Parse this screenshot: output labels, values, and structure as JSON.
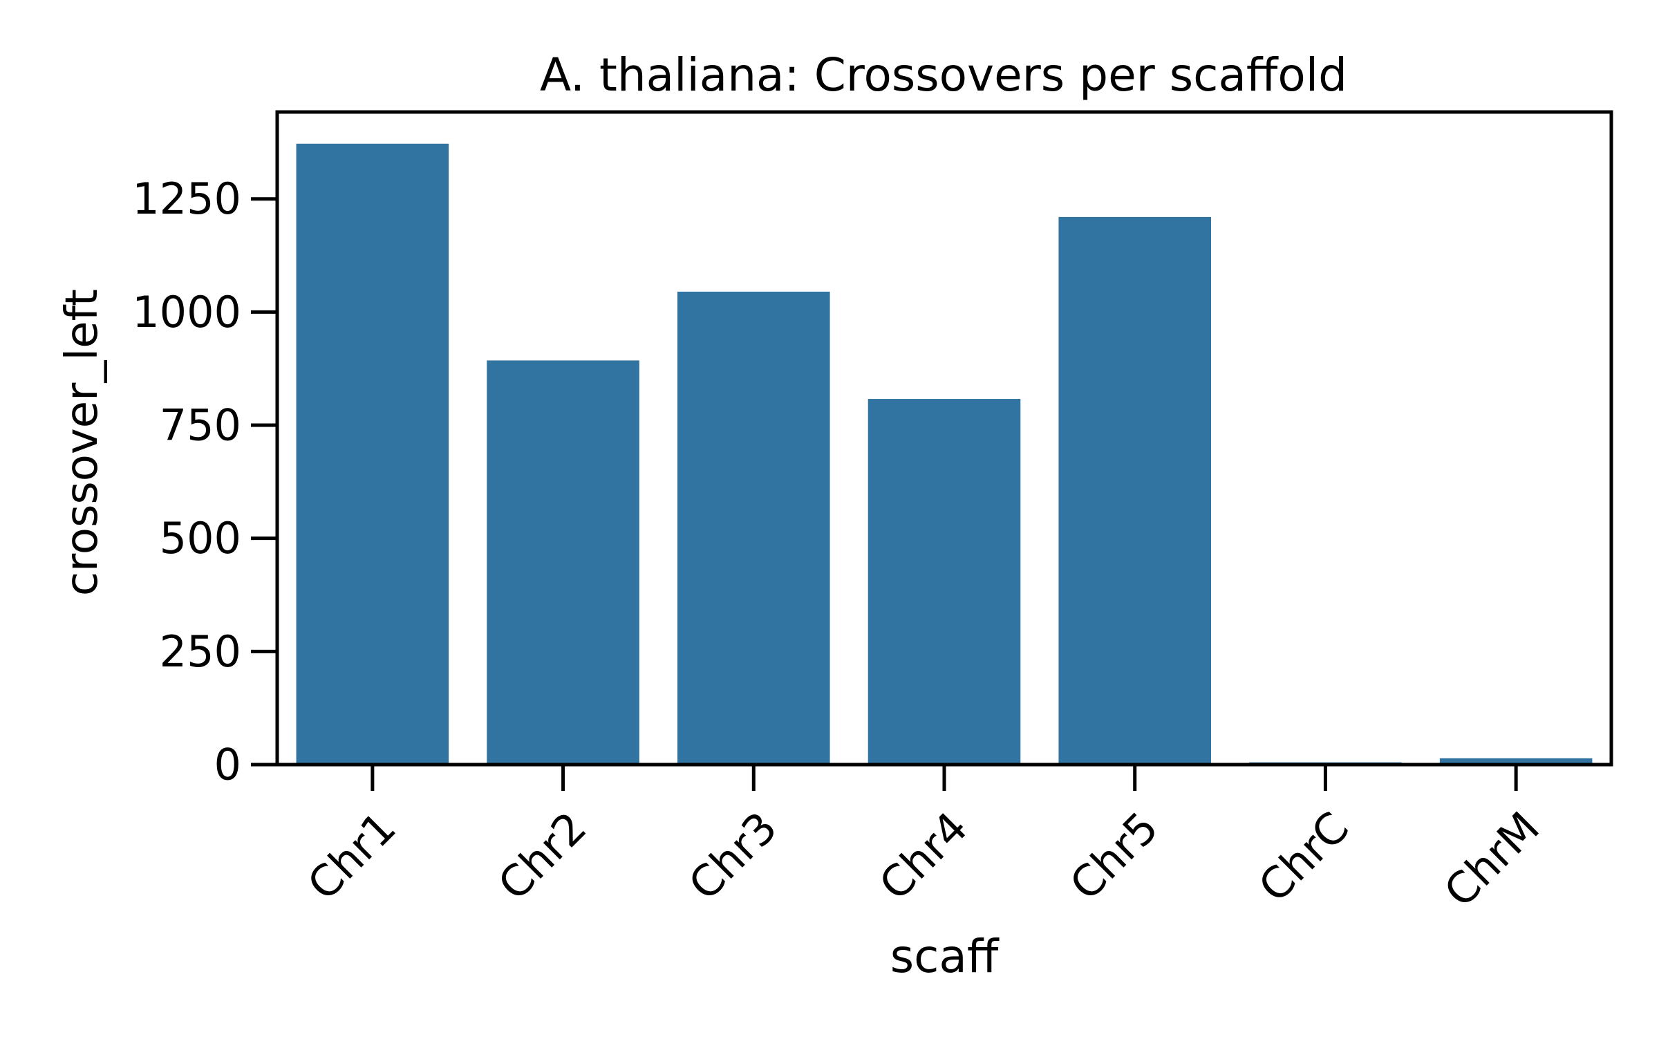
{
  "chart_data": {
    "type": "bar",
    "title": "A. thaliana: Crossovers per scaffold",
    "xlabel": "scaff",
    "ylabel": "crossover_left",
    "categories": [
      "Chr1",
      "Chr2",
      "Chr3",
      "Chr4",
      "Chr5",
      "ChrC",
      "ChrM"
    ],
    "values": [
      1372,
      893,
      1045,
      808,
      1210,
      5,
      14
    ],
    "ylim": [
      0,
      1442
    ],
    "yticks": [
      0,
      250,
      500,
      750,
      1000,
      1250
    ],
    "ytick_labels": [
      "0",
      "250",
      "500",
      "750",
      "1000",
      "1250"
    ],
    "bar_color": "#3274a1",
    "grid": false,
    "legend": "none"
  }
}
